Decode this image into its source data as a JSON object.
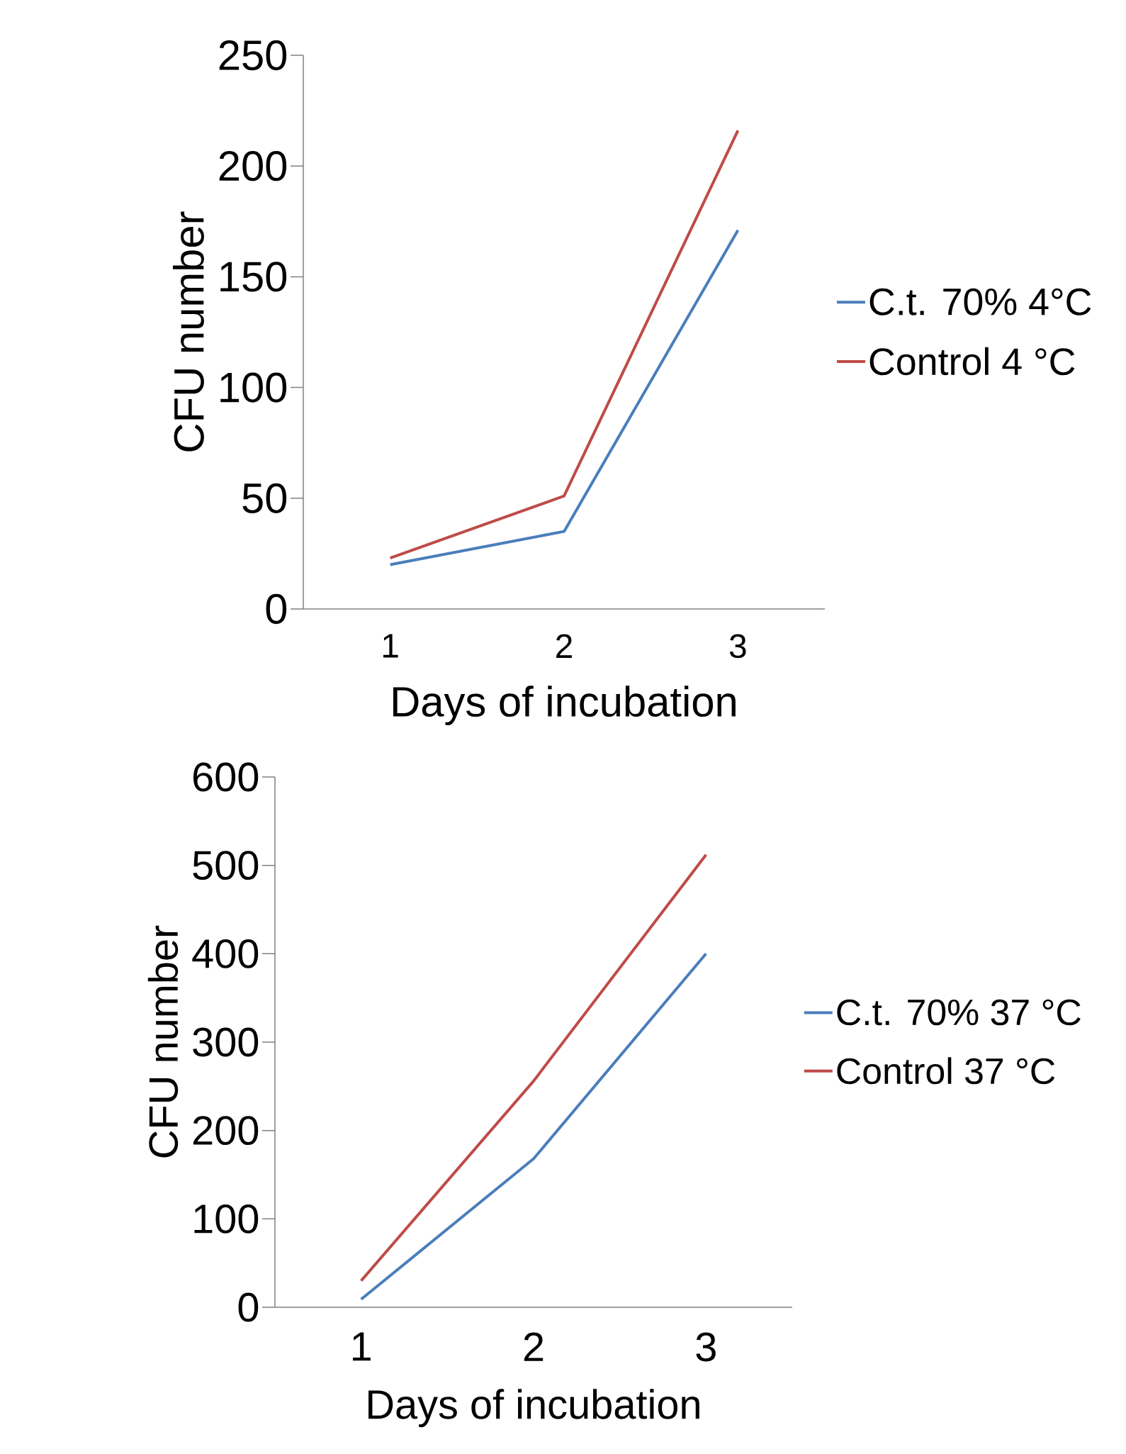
{
  "chart_data": [
    {
      "type": "line",
      "categories": [
        "1",
        "2",
        "3"
      ],
      "xlabel": "Days of incubation",
      "ylabel": "CFU number",
      "ylim": [
        0,
        250
      ],
      "yticks": [
        0,
        50,
        100,
        150,
        200,
        250
      ],
      "legend": "right",
      "series": [
        {
          "name": "C.t. 70% 4°C",
          "color": "#4a7ebb",
          "values": [
            20,
            35,
            171
          ]
        },
        {
          "name": "Control 4 °C",
          "color": "#be4b48",
          "values": [
            23,
            51,
            216
          ]
        }
      ]
    },
    {
      "type": "line",
      "categories": [
        "1",
        "2",
        "3"
      ],
      "xlabel": "Days of incubation",
      "ylabel": "CFU number",
      "ylim": [
        0,
        600
      ],
      "yticks": [
        0,
        100,
        200,
        300,
        400,
        500,
        600
      ],
      "legend": "right",
      "series": [
        {
          "name": "C.t. 70% 37 °C",
          "color": "#4a7ebb",
          "values": [
            9,
            168,
            400
          ]
        },
        {
          "name": "Control 37 °C",
          "color": "#be4b48",
          "values": [
            30,
            256,
            512
          ]
        }
      ]
    }
  ]
}
